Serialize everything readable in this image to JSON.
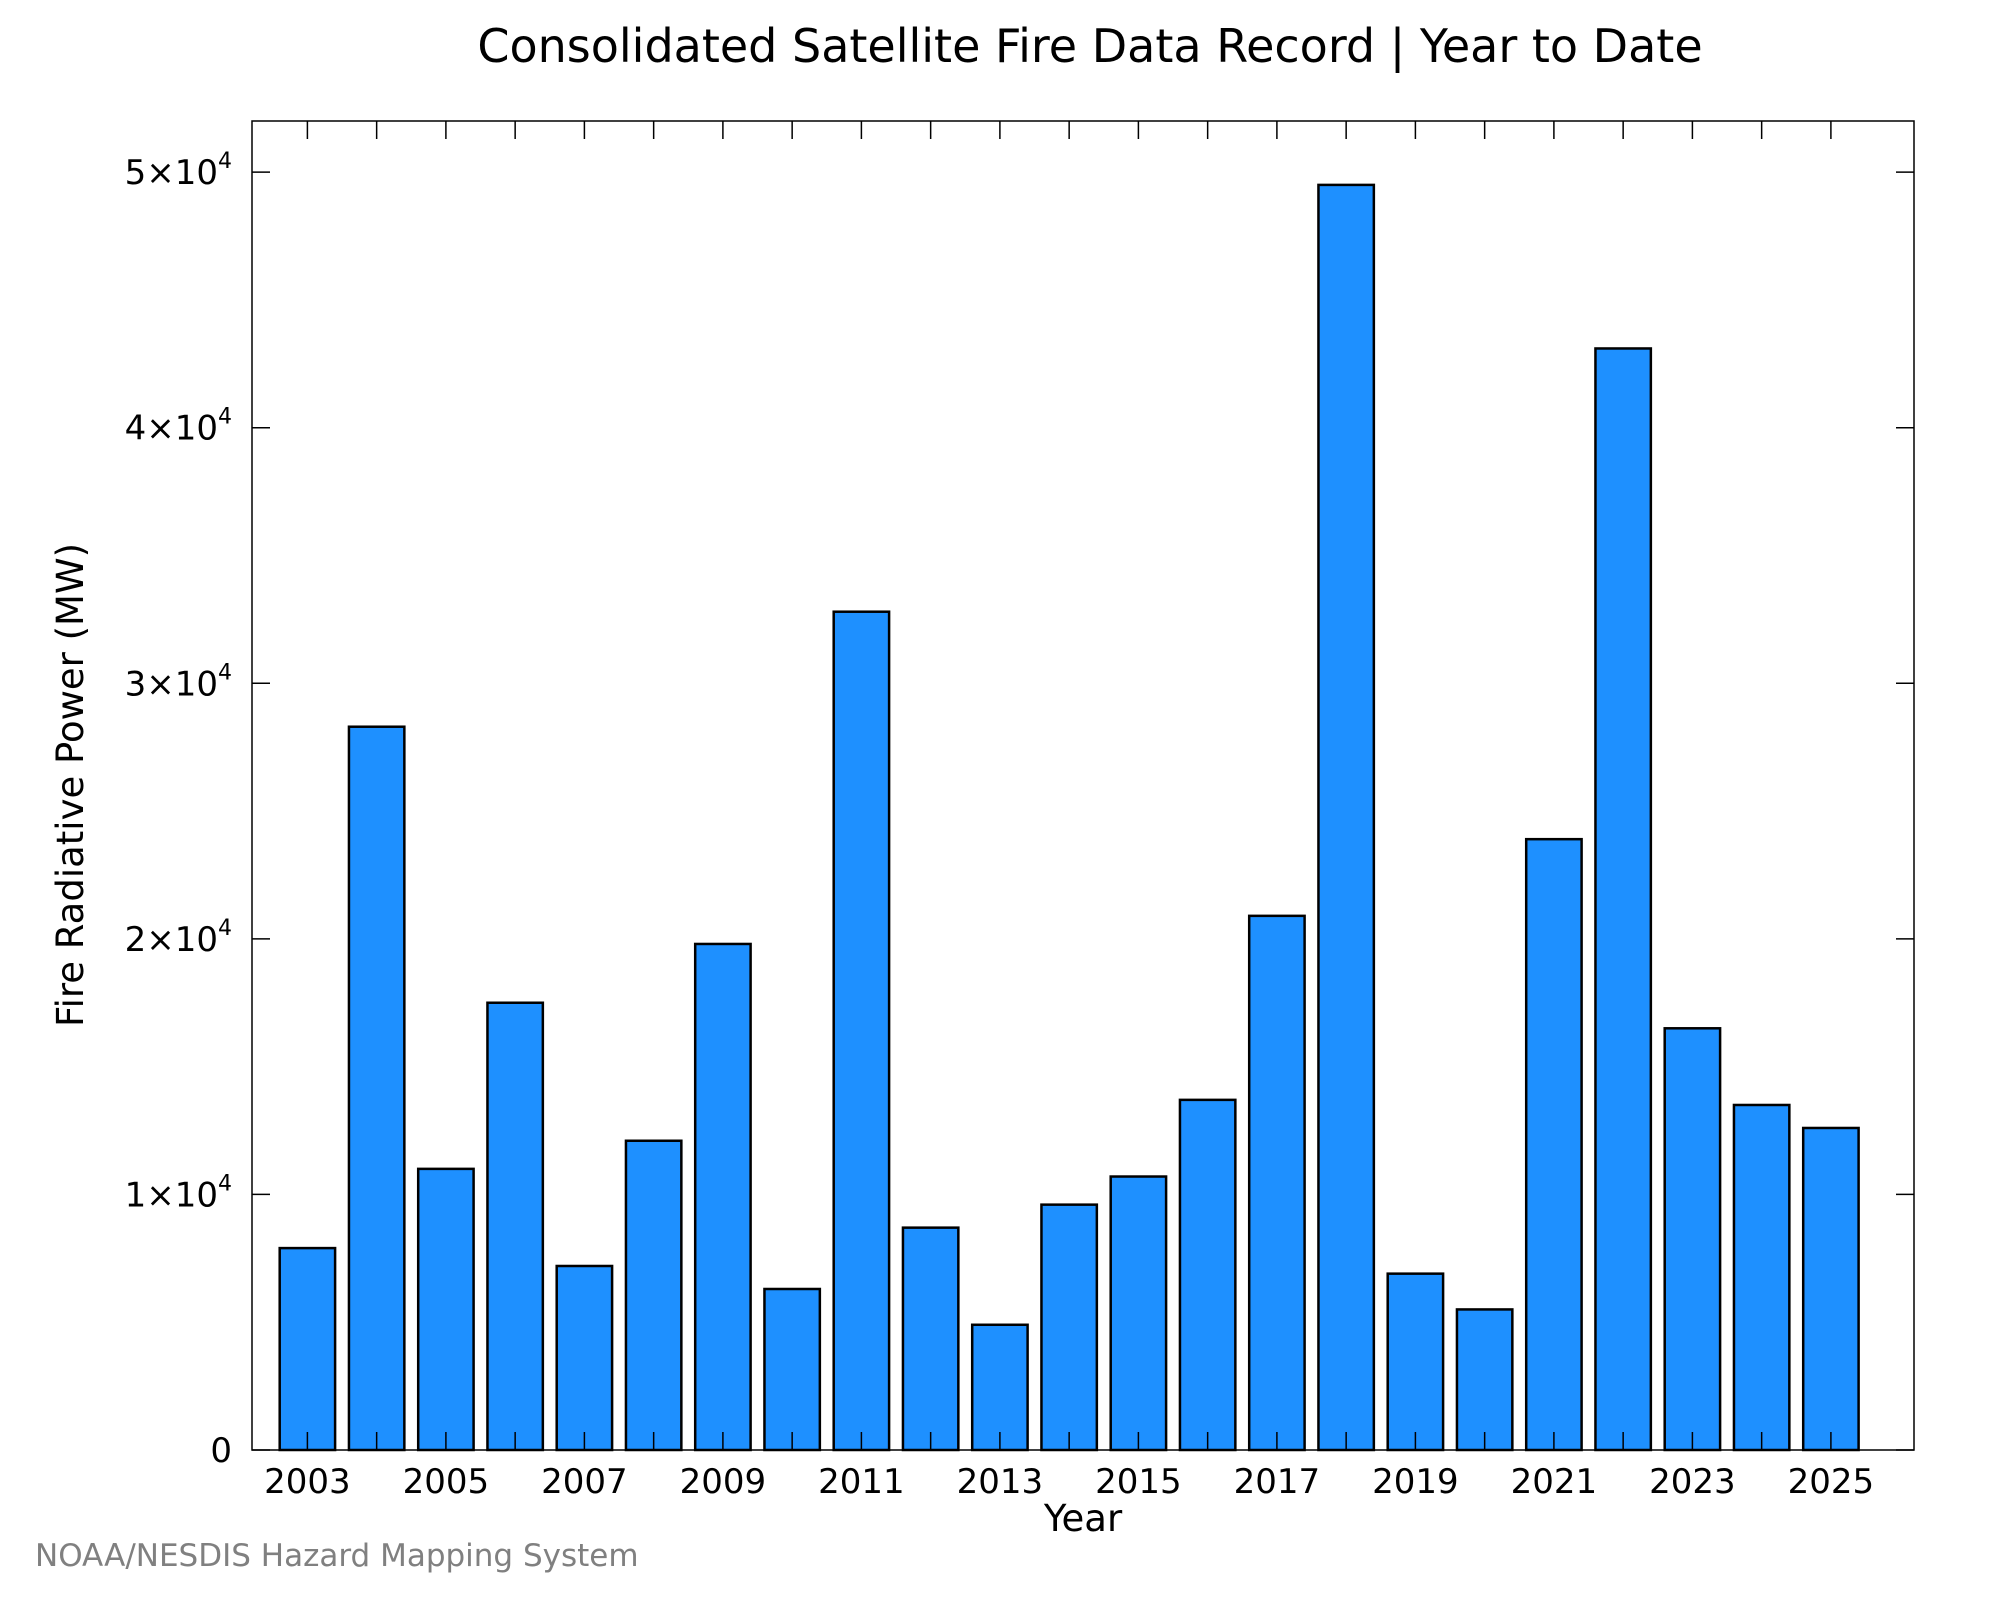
{
  "chart_data": {
    "type": "bar",
    "title": "Consolidated Satellite Fire Data Record | Year to Date",
    "xlabel": "Year",
    "ylabel": "Fire Radiative Power (MW)",
    "categories": [
      "2003",
      "2004",
      "2005",
      "2006",
      "2007",
      "2008",
      "2009",
      "2010",
      "2011",
      "2012",
      "2013",
      "2014",
      "2015",
      "2016",
      "2017",
      "2018",
      "2019",
      "2020",
      "2021",
      "2022",
      "2023",
      "2024",
      "2025"
    ],
    "values": [
      7900,
      28300,
      11000,
      17500,
      7200,
      12100,
      19800,
      6300,
      32800,
      8700,
      4900,
      9600,
      10700,
      13700,
      20900,
      49500,
      6900,
      5500,
      23900,
      43100,
      16500,
      13500,
      12600
    ],
    "x_tick_labels": [
      "2003",
      "2005",
      "2007",
      "2009",
      "2011",
      "2013",
      "2015",
      "2017",
      "2019",
      "2021",
      "2023",
      "2025"
    ],
    "y_ticks": [
      {
        "value": 0,
        "mantissa": "0",
        "exp": ""
      },
      {
        "value": 10000,
        "mantissa": "1×10",
        "exp": "4"
      },
      {
        "value": 20000,
        "mantissa": "2×10",
        "exp": "4"
      },
      {
        "value": 30000,
        "mantissa": "3×10",
        "exp": "4"
      },
      {
        "value": 40000,
        "mantissa": "4×10",
        "exp": "4"
      },
      {
        "value": 50000,
        "mantissa": "5×10",
        "exp": "4"
      }
    ],
    "ylim": [
      0,
      52000
    ],
    "xlim": [
      2002.2,
      2026.2
    ],
    "grid": false,
    "bar_color": "#1e90ff",
    "bar_edge_color": "#000000"
  },
  "credit": "NOAA/NESDIS Hazard Mapping System"
}
